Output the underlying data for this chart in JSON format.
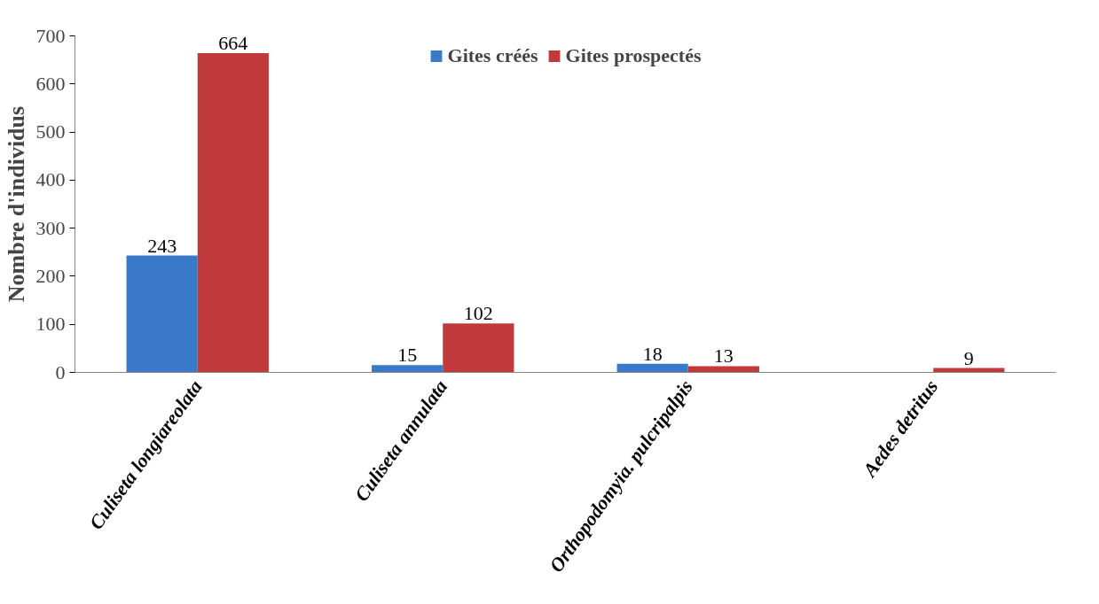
{
  "chart_data": {
    "type": "bar",
    "ylabel": "Nombre d'individus",
    "categories": [
      "Culiseta longiareolata",
      "Culiseta annulata",
      "Orthopodomyia. pulcripalpis",
      "Aedes detritus"
    ],
    "series": [
      {
        "name": "Gites créés",
        "color": "#3a78c9",
        "values": [
          243,
          15,
          18,
          null
        ]
      },
      {
        "name": "Gites prospectés",
        "color": "#c0393b",
        "values": [
          664,
          102,
          13,
          9
        ]
      }
    ],
    "ylim": [
      0,
      700
    ],
    "yticks": [
      0,
      100,
      200,
      300,
      400,
      500,
      600,
      700
    ],
    "data_labels": true,
    "legend": "top",
    "grid": false
  }
}
